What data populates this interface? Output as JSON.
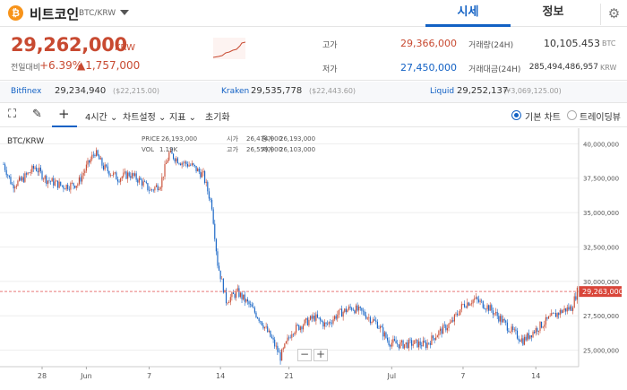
{
  "header": {
    "coin_icon": "bitcoin-icon",
    "coin_name": "비트코인",
    "pair": "BTC/KRW",
    "tabs": [
      {
        "label": "시세",
        "active": true
      },
      {
        "label": "정보",
        "active": false
      }
    ]
  },
  "summary": {
    "price": "29,262,000",
    "price_unit": "KRW",
    "change_label": "전일대비",
    "change_pct": "+6.39%",
    "change_amount": "▲1,757,000",
    "high_label": "고가",
    "high_value": "29,366,000",
    "low_label": "저가",
    "low_value": "27,450,000",
    "volume_label": "거래량(24H)",
    "volume_value": "10,105.453",
    "volume_unit": "BTC",
    "amount_label": "거래대금(24H)",
    "amount_value": "285,494,486,957",
    "amount_unit": "KRW"
  },
  "exchanges": [
    {
      "name": "Bitfinex",
      "price": "29,234,940",
      "sub": "($22,215.00)"
    },
    {
      "name": "Kraken",
      "price": "29,535,778",
      "sub": "($22,443.60)"
    },
    {
      "name": "Liquid",
      "price": "29,252,137",
      "sub": "(¥3,069,125.00)"
    }
  ],
  "toolbar": {
    "interval": "4시간",
    "chart_settings": "차트설정",
    "indicators": "지표",
    "reset": "초기화",
    "basic_chart": "기본 차트",
    "tradingview": "트레이딩뷰"
  },
  "colors": {
    "up": "#c84a31",
    "down": "#1261c4",
    "accent": "#1261c4"
  },
  "chart_data": {
    "type": "candlestick",
    "symbol": "BTC/KRW",
    "ohlc_info": {
      "price_label": "PRICE",
      "price": "26,193,000",
      "open_label": "시가",
      "open": "26,474,000",
      "close_label": "종가",
      "close": "26,193,000",
      "high_label": "고가",
      "high": "26,559,000",
      "low_label": "저가",
      "low": "26,103,000",
      "vol_label": "VOL",
      "vol": "1.19K"
    },
    "ylim": [
      23800000,
      41000000
    ],
    "y_ticks": [
      "40,000,000",
      "37,500,000",
      "35,000,000",
      "32,500,000",
      "30,000,000",
      "27,500,000",
      "25,000,000"
    ],
    "y_tick_values": [
      40000000,
      37500000,
      35000000,
      32500000,
      30000000,
      27500000,
      25000000
    ],
    "x_ticks": [
      "28",
      "Jun",
      "7",
      "14",
      "21",
      "Jul",
      "7",
      "14"
    ],
    "current_price_label": "29,263,000",
    "current_price": 29263000,
    "series": [
      {
        "name": "close",
        "anchors": [
          [
            0,
            38500000
          ],
          [
            6,
            37000000
          ],
          [
            12,
            37300000
          ],
          [
            22,
            38300000
          ],
          [
            30,
            37400000
          ],
          [
            42,
            36900000
          ],
          [
            52,
            37100000
          ],
          [
            58,
            38300000
          ],
          [
            64,
            39400000
          ],
          [
            70,
            38300000
          ],
          [
            80,
            37500000
          ],
          [
            88,
            37800000
          ],
          [
            96,
            37300000
          ],
          [
            103,
            36600000
          ],
          [
            110,
            37100000
          ],
          [
            116,
            39300000
          ],
          [
            124,
            38700000
          ],
          [
            132,
            38400000
          ],
          [
            140,
            37700000
          ],
          [
            146,
            35500000
          ],
          [
            150,
            31300000
          ],
          [
            156,
            28600000
          ],
          [
            164,
            29200000
          ],
          [
            172,
            28300000
          ],
          [
            180,
            27200000
          ],
          [
            188,
            25800000
          ],
          [
            194,
            24500000
          ],
          [
            202,
            26400000
          ],
          [
            210,
            26900000
          ],
          [
            218,
            27400000
          ],
          [
            226,
            26800000
          ],
          [
            234,
            27600000
          ],
          [
            244,
            28100000
          ],
          [
            252,
            27700000
          ],
          [
            262,
            26900000
          ],
          [
            270,
            25600000
          ],
          [
            278,
            25400000
          ],
          [
            288,
            25500000
          ],
          [
            296,
            25400000
          ],
          [
            304,
            26200000
          ],
          [
            314,
            27000000
          ],
          [
            322,
            28300000
          ],
          [
            330,
            28700000
          ],
          [
            340,
            28100000
          ],
          [
            348,
            27300000
          ],
          [
            356,
            26400000
          ],
          [
            364,
            25700000
          ],
          [
            374,
            26600000
          ],
          [
            384,
            27400000
          ],
          [
            392,
            27900000
          ],
          [
            398,
            28100000
          ],
          [
            402,
            29263000
          ]
        ]
      }
    ]
  }
}
